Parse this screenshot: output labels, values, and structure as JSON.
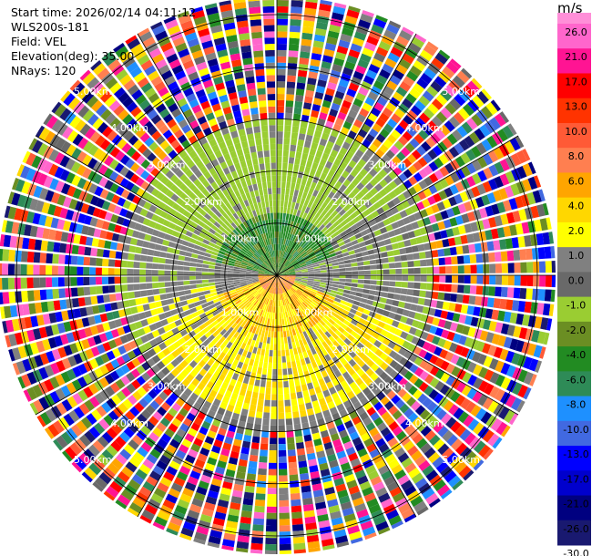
{
  "header": {
    "start_time": "Start time: 2026/02/14 04:11:12",
    "instrument": "WLS200s-181",
    "field": "Field: VEL",
    "elevation": "Elevation(deg): 35.00",
    "nrays": "NRays: 120"
  },
  "chart_data": {
    "type": "heatmap",
    "subtype": "polar-ppi",
    "field": "VEL",
    "nrays": 120,
    "range_rings_km": [
      1,
      2,
      3,
      4,
      5
    ],
    "ring_labels": [
      "1.00km",
      "2.00km",
      "3.00km",
      "4.00km",
      "5.00km"
    ],
    "max_range_km": 5.35,
    "colorbar": {
      "unit": "m/s",
      "ticks": [
        "26.0",
        "21.0",
        "17.0",
        "13.0",
        "10.0",
        "8.0",
        "6.0",
        "4.0",
        "2.0",
        "1.0",
        "0.0",
        "-1.0",
        "-2.0",
        "-4.0",
        "-6.0",
        "-8.0",
        "-10.0",
        "-13.0",
        "-17.0",
        "-21.0",
        "-26.0",
        "-30.0"
      ],
      "colors": [
        "#ff66cc",
        "#ff1493",
        "#ff0000",
        "#ff3300",
        "#ff5a36",
        "#ff7f50",
        "#ffa500",
        "#ffd700",
        "#ffff00",
        "#808080",
        "#696969",
        "#9acd32",
        "#6b8e23",
        "#228b22",
        "#2e8b57",
        "#1e90ff",
        "#4169e1",
        "#0000ff",
        "#0000cd",
        "#000080",
        "#191970"
      ]
    }
  }
}
